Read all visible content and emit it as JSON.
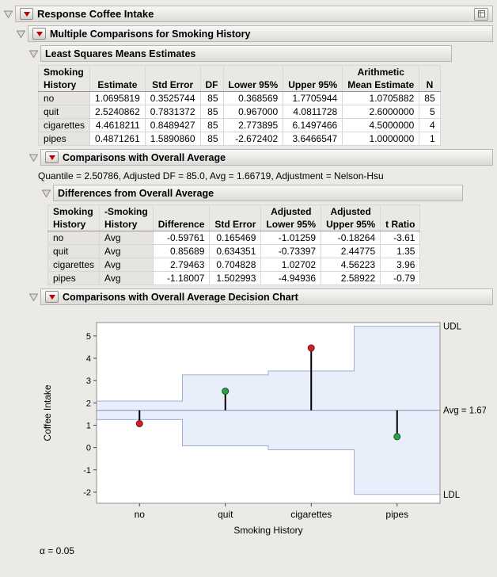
{
  "report": {
    "title": "Response Coffee Intake",
    "sections": {
      "multiple_comparisons": "Multiple Comparisons for Smoking History",
      "lsm": "Least Squares Means Estimates",
      "overall_avg": "Comparisons with Overall Average",
      "quantile_line": "Quantile = 2.50786, Adjusted DF = 85.0, Avg = 1.66719, Adjustment = Nelson-Hsu",
      "differences": "Differences from Overall Average",
      "decision_chart": "Comparisons with Overall Average Decision Chart",
      "alpha": "α = 0.05"
    }
  },
  "colors": {
    "red_triangle": "#c00000",
    "band_fill": "#e8eefa",
    "band_stroke": "#9fadd2",
    "avg_line": "#8d9cc2"
  },
  "lsm_table": {
    "columns": [
      "Smoking\nHistory",
      "Estimate",
      "Std Error",
      "DF",
      "Lower 95%",
      "Upper 95%",
      "Arithmetic\nMean Estimate",
      "N"
    ],
    "label_cols": 1,
    "rows": [
      [
        "no",
        "1.0695819",
        "0.3525744",
        "85",
        "0.368569",
        "1.7705944",
        "1.0705882",
        "85"
      ],
      [
        "quit",
        "2.5240862",
        "0.7831372",
        "85",
        "0.967000",
        "4.0811728",
        "2.6000000",
        "5"
      ],
      [
        "cigarettes",
        "4.4618211",
        "0.8489427",
        "85",
        "2.773895",
        "6.1497466",
        "4.5000000",
        "4"
      ],
      [
        "pipes",
        "0.4871261",
        "1.5890860",
        "85",
        "-2.672402",
        "3.6466547",
        "1.0000000",
        "1"
      ]
    ]
  },
  "diff_table": {
    "columns": [
      "Smoking\nHistory",
      "-Smoking\nHistory",
      "Difference",
      "Std Error",
      "Adjusted\nLower 95%",
      "Adjusted\nUpper 95%",
      "t Ratio"
    ],
    "label_cols": 2,
    "rows": [
      [
        "no",
        "Avg",
        "-0.59761",
        "0.165469",
        "-1.01259",
        "-0.18264",
        "-3.61"
      ],
      [
        "quit",
        "Avg",
        "0.85689",
        "0.634351",
        "-0.73397",
        "2.44775",
        "1.35"
      ],
      [
        "cigarettes",
        "Avg",
        "2.79463",
        "0.704828",
        "1.02702",
        "4.56223",
        "3.96"
      ],
      [
        "pipes",
        "Avg",
        "-1.18007",
        "1.502993",
        "-4.94936",
        "2.58922",
        "-0.79"
      ]
    ]
  },
  "chart_data": {
    "type": "scatter",
    "title": "Comparisons with Overall Average Decision Chart",
    "xlabel": "Smoking History",
    "ylabel": "Coffee Intake",
    "categories": [
      "no",
      "quit",
      "cigarettes",
      "pipes"
    ],
    "means": [
      1.0695819,
      2.5240862,
      4.4618211,
      0.4871261
    ],
    "udl": [
      2.0822,
      3.258,
      3.4348,
      5.4365
    ],
    "ldl": [
      1.2522,
      0.0763,
      -0.1004,
      -2.1021
    ],
    "avg": 1.66719,
    "avg_label": "Avg = 1.67",
    "udl_label": "UDL",
    "ldl_label": "LDL",
    "significant": [
      true,
      false,
      true,
      false
    ],
    "point_colors": {
      "significant": "#cb2229",
      "not_significant": "#2f9e44"
    },
    "ylim": [
      -2.5,
      5.6
    ],
    "yticks": [
      -2,
      -1,
      0,
      1,
      2,
      3,
      4,
      5
    ],
    "grid": false,
    "legend": "none"
  }
}
